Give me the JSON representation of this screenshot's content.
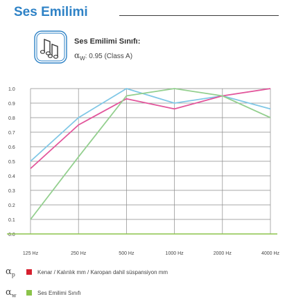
{
  "header": {
    "title": "Ses Emilimi"
  },
  "info": {
    "icon": "music-notes-icon",
    "class_title": "Ses Emilimi Sınıfı:",
    "alpha_symbol": "α",
    "alpha_sub": "W",
    "class_value": ": 0.95 (Class A)"
  },
  "chart_data": {
    "type": "line",
    "categories": [
      "125 Hz",
      "250 Hz",
      "500 Hz",
      "1000 Hz",
      "2000 Hz",
      "4000 Hz"
    ],
    "y_ticks": [
      "0.0",
      "0.1",
      "0.2",
      "0.3",
      "0.4",
      "0.5",
      "0.6",
      "0.7",
      "0.8",
      "0.9",
      "1.0"
    ],
    "ylim": [
      0,
      1.0
    ],
    "grid": true,
    "series": [
      {
        "color": "#7fc7e6",
        "values": [
          0.5,
          0.8,
          1.0,
          0.9,
          0.95,
          0.86
        ]
      },
      {
        "color": "#e2559b",
        "values": [
          0.45,
          0.75,
          0.93,
          0.86,
          0.95,
          1.0
        ]
      },
      {
        "color": "#93cf8e",
        "values": [
          0.1,
          0.53,
          0.95,
          1.0,
          0.95,
          0.8
        ]
      }
    ]
  },
  "legend": [
    {
      "symbol": "α",
      "sub": "p",
      "color": "#d6202f",
      "text": "Kenar / Kalınlık mm / Karopan dahil süspansiyon mm"
    },
    {
      "symbol": "α",
      "sub": "w",
      "color": "#8bc34a",
      "text": "Ses Emilimi Sınıfı"
    }
  ]
}
